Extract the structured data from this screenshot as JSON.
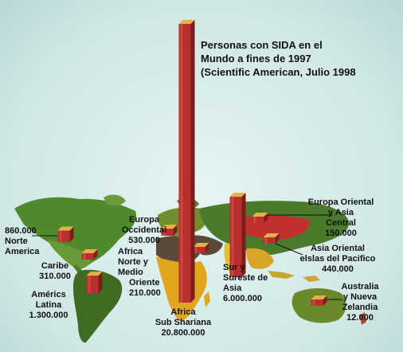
{
  "chart_data": {
    "type": "bar",
    "title_lines": [
      "Personas con SIDA en el",
      "Mundo a fines de 1997",
      "(Scientific American, Julio 1998"
    ],
    "categories": [
      "Norte America",
      "Caribe",
      "Américs Latina",
      "Europa Occidental",
      "Africa Norte y Medio Oriente",
      "Africa Sub Shariana",
      "Sur y Sureste de Asia",
      "Europa Oriental y Asia Central",
      "Asia Oriental elslas del Pacifico",
      "Australia y Nueva Zelandia"
    ],
    "values": [
      860000,
      310000,
      1300000,
      530000,
      210000,
      20800000,
      6000000,
      150000,
      440000,
      12000
    ],
    "bar_color": "#b8302e",
    "top_color": "#e2b14a"
  },
  "labels": {
    "norte_america": {
      "value": "860.000",
      "name_1": "Norte",
      "name_2": "America"
    },
    "caribe": {
      "name": "Caribe",
      "value": "310.000"
    },
    "latina": {
      "name_1": "Américs",
      "name_2": "Latina",
      "value": "1.300.000"
    },
    "europa_occ": {
      "name_1": "Europa",
      "name_2": "Occidental",
      "value": "530.000"
    },
    "africa_norte": {
      "name_1": "Africa",
      "name_2": "Norte y",
      "name_3": "Medio",
      "name_4": "Oriente",
      "value": "210.000"
    },
    "africa_sub": {
      "name_1": "Africa",
      "name_2": "Sub Shariana",
      "value": "20.800.000"
    },
    "sur_asia": {
      "name_1": "Sur y",
      "name_2": "Sureste de",
      "name_3": "Asia",
      "value": "6.000.000"
    },
    "europa_or": {
      "name_1": "Europa Oriental",
      "name_2": "y Asia",
      "name_3": "Central",
      "value": "150.000"
    },
    "asia_or": {
      "name_1": "Asia Oriental",
      "name_2": "elslas del Pacifico",
      "value": "440.000"
    },
    "australia": {
      "name_1": "Australia",
      "name_2": "y Nueva",
      "name_3": "Zelandia",
      "value": "12.000"
    }
  }
}
